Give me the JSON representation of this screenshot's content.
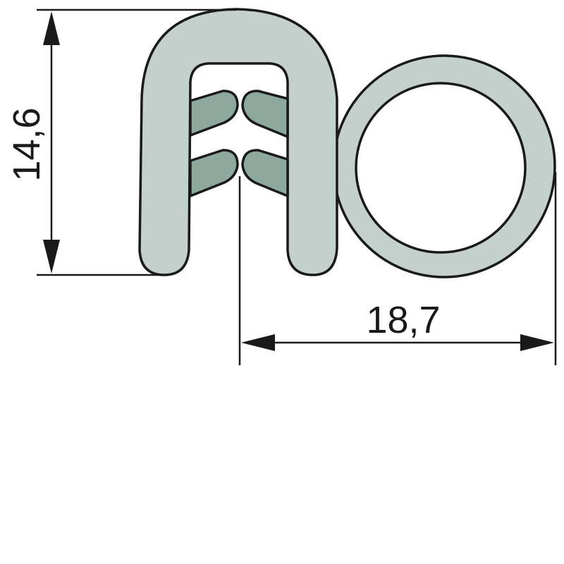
{
  "dimensions": {
    "height_value": "14,6",
    "width_value": "18,7"
  },
  "colors": {
    "profile_fill": "#c3d0cc",
    "lip_fill": "#8da99e",
    "outline": "#1a1a1a",
    "background": "#ffffff"
  }
}
